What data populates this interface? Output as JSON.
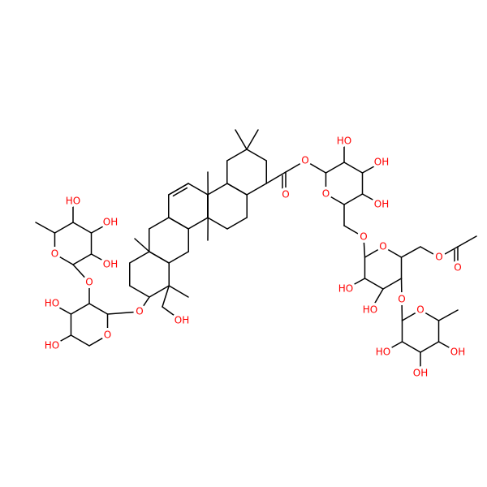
{
  "molecule": {
    "atoms": [
      "O",
      "O",
      "HO",
      "OH",
      "OH",
      "O",
      "O",
      "O",
      "O",
      "O",
      "HO",
      "HO",
      "O",
      "O",
      "OH",
      "OH",
      "HO",
      "OH",
      "O",
      "O",
      "HO",
      "HO",
      "O",
      "O",
      "HO",
      "OH",
      "OH"
    ]
  }
}
